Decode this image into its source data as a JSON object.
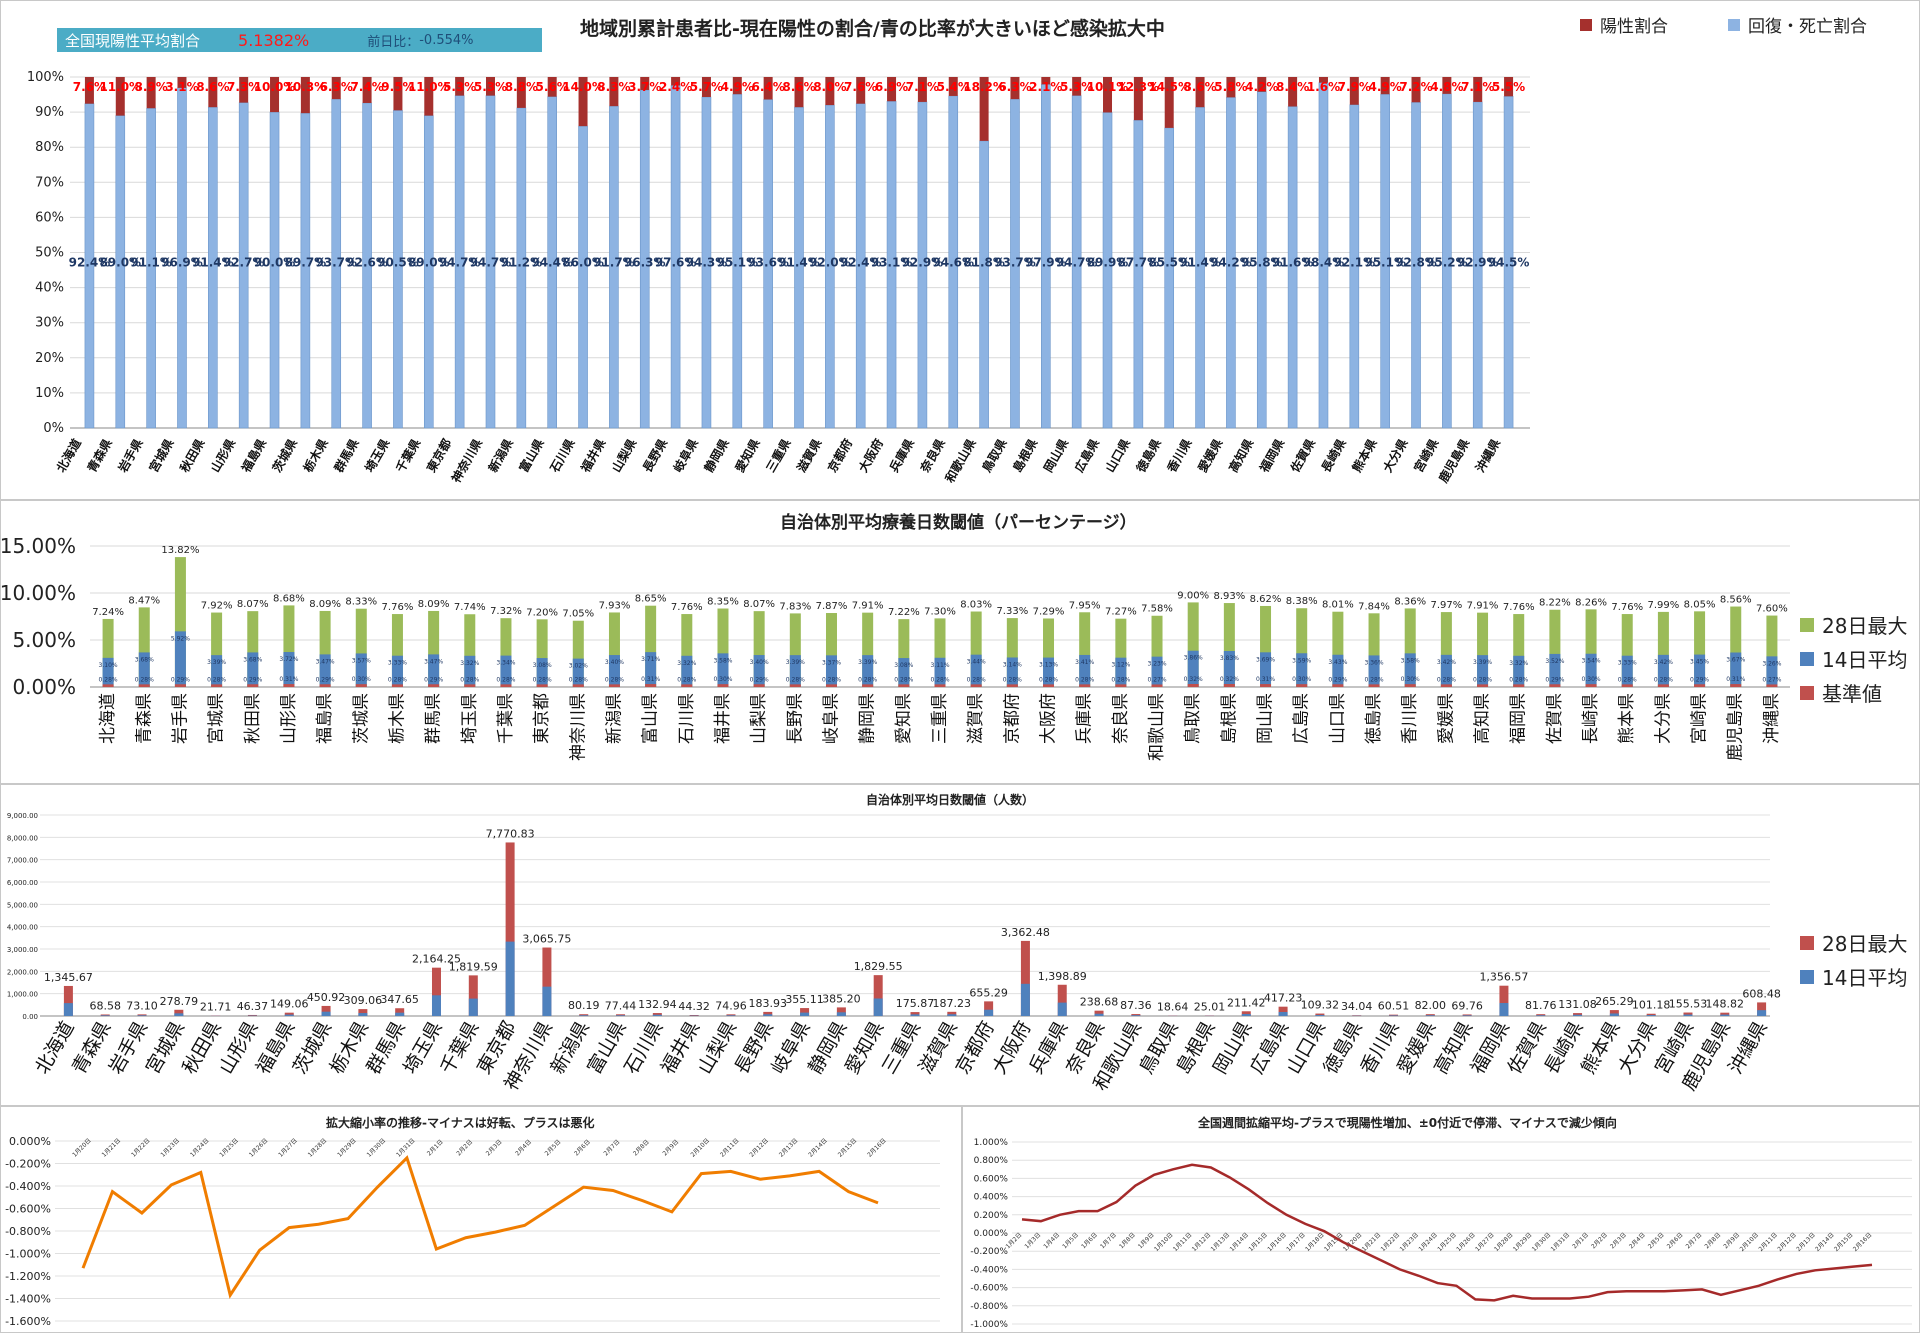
{
  "prefectures": [
    "北海道",
    "青森県",
    "岩手県",
    "宮城県",
    "秋田県",
    "山形県",
    "福島県",
    "茨城県",
    "栃木県",
    "群馬県",
    "埼玉県",
    "千葉県",
    "東京都",
    "神奈川県",
    "新潟県",
    "富山県",
    "石川県",
    "福井県",
    "山梨県",
    "長野県",
    "岐阜県",
    "静岡県",
    "愛知県",
    "三重県",
    "滋賀県",
    "京都府",
    "大阪府",
    "兵庫県",
    "奈良県",
    "和歌山県",
    "鳥取県",
    "島根県",
    "岡山県",
    "広島県",
    "山口県",
    "徳島県",
    "香川県",
    "愛媛県",
    "高知県",
    "福岡県",
    "佐賀県",
    "長崎県",
    "熊本県",
    "大分県",
    "宮崎県",
    "鹿児島県",
    "沖縄県"
  ],
  "summary": {
    "label": "全国現陽性平均割合",
    "value": "5.1382%",
    "change_label": "前日比",
    "change_sep": "：",
    "change_value": "-0.554%"
  },
  "colors": {
    "positive": "#a5302d",
    "recovered": "#8db3e2",
    "max28": "#9bbb59",
    "avg14": "#4f81bd",
    "base": "#c0504d",
    "max28_people": "#c0504d",
    "orange": "#f07d00",
    "darkred": "#a52a2a",
    "red_text": "#ff0000",
    "blue_text": "#1f3864"
  },
  "chart_data": [
    {
      "type": "bar",
      "stacked": true,
      "title": "地域別累計患者比-現在陽性の割合/青の比率が大きいほど感染拡大中",
      "categories_ref": "prefectures",
      "ylim": [
        0,
        100
      ],
      "yticks": [
        "0%",
        "10%",
        "20%",
        "30%",
        "40%",
        "50%",
        "60%",
        "70%",
        "80%",
        "90%",
        "100%"
      ],
      "series": [
        {
          "name": "陽性割合",
          "values": [
            7.6,
            11.0,
            8.9,
            3.1,
            8.6,
            7.3,
            10.0,
            10.3,
            6.3,
            7.4,
            9.5,
            11.0,
            5.3,
            5.3,
            8.8,
            5.6,
            14.0,
            8.3,
            3.7,
            2.4,
            5.7,
            4.9,
            6.4,
            8.6,
            8.0,
            7.6,
            6.9,
            7.1,
            5.4,
            18.2,
            6.3,
            2.1,
            5.3,
            10.1,
            12.3,
            14.5,
            8.6,
            5.8,
            4.2,
            8.4,
            1.6,
            7.9,
            4.9,
            7.2,
            4.8,
            7.1,
            5.5
          ]
        },
        {
          "name": "回復・死亡割合",
          "values": [
            92.4,
            89.0,
            91.1,
            96.9,
            91.4,
            92.7,
            90.0,
            89.7,
            93.7,
            92.6,
            90.5,
            89.0,
            94.7,
            94.7,
            91.2,
            94.4,
            86.0,
            91.7,
            96.3,
            97.6,
            94.3,
            95.1,
            93.6,
            91.4,
            92.0,
            92.4,
            93.1,
            92.9,
            94.6,
            81.8,
            93.7,
            97.9,
            94.7,
            89.9,
            87.7,
            85.5,
            91.4,
            94.2,
            95.8,
            91.6,
            98.4,
            92.1,
            95.1,
            92.8,
            95.2,
            92.9,
            94.5
          ]
        }
      ],
      "positive_labels": [
        "7.6%",
        "11.0%",
        "8.9%",
        "3.1%",
        "8.6%",
        "7.3%",
        "10.0%",
        "10.3%",
        "6.3%",
        "7.4%",
        "9.5%",
        "11.0%",
        "5.3%",
        "5.3%",
        "8.8%",
        "5.6%",
        "14.0%",
        "8.3%",
        "3.7%",
        "2.4%",
        "5.7%",
        "4.9%",
        "6.4%",
        "8.6%",
        "8.0%",
        "7.6%",
        "6.9%",
        "7.1%",
        "5.4%",
        "18.2%",
        "6.3%",
        "2.1%",
        "5.3%",
        "10.1%",
        "12.3%",
        "14.5%",
        "8.6%",
        "5.8%",
        "4.2%",
        "8.4%",
        "1.6%",
        "7.9%",
        "4.9%",
        "7.2%",
        "4.8%",
        "7.1%",
        "5.5%"
      ],
      "recovered_labels": [
        "92.4%",
        "89.0%",
        "91.1%",
        "96.9%",
        "91.4%",
        "92.7%",
        "90.0%",
        "89.7%",
        "93.7%",
        "92.6%",
        "90.5%",
        "89.0%",
        "94.7%",
        "94.7%",
        "91.2%",
        "94.4%",
        "86.0%",
        "91.7%",
        "96.3%",
        "97.6%",
        "94.3%",
        "95.1%",
        "93.6%",
        "91.4%",
        "92.0%",
        "92.4%",
        "93.1%",
        "92.9%",
        "94.6%",
        "81.8%",
        "93.7%",
        "97.9%",
        "94.7%",
        "89.9%",
        "87.7%",
        "85.5%",
        "91.4%",
        "94.2%",
        "95.8%",
        "91.6%",
        "98.4%",
        "92.1%",
        "95.1%",
        "92.8%",
        "95.2%",
        "92.9%",
        "94.5%"
      ],
      "legend_position": "top-right"
    },
    {
      "type": "bar",
      "title": "自治体別平均療養日数閾値（パーセンテージ）",
      "categories_ref": "prefectures",
      "ylim": [
        0,
        15
      ],
      "yticks": [
        "0.00%",
        "5.00%",
        "10.00%",
        "15.00%"
      ],
      "series": [
        {
          "name": "28日最大",
          "values": [
            7.24,
            8.47,
            13.82,
            7.92,
            8.07,
            8.68,
            8.09,
            8.33,
            7.76,
            8.09,
            7.74,
            7.32,
            7.2,
            7.05,
            7.93,
            8.65,
            7.76,
            8.35,
            8.07,
            7.83,
            7.87,
            7.91,
            7.22,
            7.3,
            8.03,
            7.33,
            7.29,
            7.95,
            7.27,
            7.58,
            9.0,
            8.93,
            8.62,
            8.38,
            8.01,
            7.84,
            8.36,
            7.97,
            7.91,
            7.76,
            8.22,
            8.26,
            7.76,
            7.99,
            8.05,
            8.56,
            7.6
          ]
        },
        {
          "name": "14日平均",
          "values": [
            3.1,
            3.68,
            5.92,
            3.39,
            3.68,
            3.72,
            3.47,
            3.57,
            3.33,
            3.47,
            3.32,
            3.34,
            3.08,
            3.02,
            3.4,
            3.71,
            3.32,
            3.58,
            3.4,
            3.39,
            3.37,
            3.39,
            3.08,
            3.11,
            3.44,
            3.14,
            3.13,
            3.41,
            3.12,
            3.23,
            3.86,
            3.83,
            3.69,
            3.59,
            3.43,
            3.36,
            3.58,
            3.42,
            3.39,
            3.32,
            3.52,
            3.54,
            3.33,
            3.42,
            3.45,
            3.67,
            3.26
          ]
        },
        {
          "name": "基準値",
          "values": [
            0.28,
            0.28,
            0.29,
            0.28,
            0.29,
            0.31,
            0.29,
            0.3,
            0.28,
            0.29,
            0.28,
            0.28,
            0.28,
            0.28,
            0.28,
            0.31,
            0.28,
            0.3,
            0.29,
            0.28,
            0.28,
            0.28,
            0.28,
            0.28,
            0.28,
            0.28,
            0.28,
            0.28,
            0.28,
            0.27,
            0.32,
            0.32,
            0.31,
            0.3,
            0.29,
            0.28,
            0.3,
            0.28,
            0.28,
            0.28,
            0.29,
            0.3,
            0.28,
            0.28,
            0.29,
            0.31,
            0.27
          ]
        }
      ],
      "max_labels": [
        "7.24%",
        "8.47%",
        "13.82%",
        "7.92%",
        "8.07%",
        "8.68%",
        "8.09%",
        "8.33%",
        "7.76%",
        "8.09%",
        "7.74%",
        "7.32%",
        "7.20%",
        "7.05%",
        "7.93%",
        "8.65%",
        "7.76%",
        "8.35%",
        "8.07%",
        "7.83%",
        "7.87%",
        "7.91%",
        "7.22%",
        "7.30%",
        "8.03%",
        "7.33%",
        "7.29%",
        "7.95%",
        "7.27%",
        "7.58%",
        "9.00%",
        "8.93%",
        "8.62%",
        "8.38%",
        "8.01%",
        "7.84%",
        "8.36%",
        "7.97%",
        "7.91%",
        "7.76%",
        "8.22%",
        "8.26%",
        "7.76%",
        "7.99%",
        "8.05%",
        "8.56%",
        "7.60%"
      ],
      "avg_labels": [
        "3.10%",
        "3.68%",
        "5.92%",
        "3.39%",
        "3.68%",
        "3.72%",
        "3.47%",
        "3.57%",
        "3.33%",
        "3.47%",
        "3.32%",
        "3.34%",
        "3.08%",
        "3.02%",
        "3.40%",
        "3.71%",
        "3.32%",
        "3.58%",
        "3.40%",
        "3.39%",
        "3.37%",
        "3.39%",
        "3.08%",
        "3.11%",
        "3.44%",
        "3.14%",
        "3.13%",
        "3.41%",
        "3.12%",
        "3.23%",
        "3.86%",
        "3.83%",
        "3.69%",
        "3.59%",
        "3.43%",
        "3.36%",
        "3.58%",
        "3.42%",
        "3.39%",
        "3.32%",
        "3.52%",
        "3.54%",
        "3.33%",
        "3.42%",
        "3.45%",
        "3.67%",
        "3.26%"
      ],
      "base_labels": [
        "0.28%",
        "0.28%",
        "0.29%",
        "0.28%",
        "0.29%",
        "0.31%",
        "0.29%",
        "0.30%",
        "0.28%",
        "0.29%",
        "0.28%",
        "0.28%",
        "0.28%",
        "0.28%",
        "0.28%",
        "0.31%",
        "0.28%",
        "0.30%",
        "0.29%",
        "0.28%",
        "0.28%",
        "0.28%",
        "0.28%",
        "0.28%",
        "0.28%",
        "0.28%",
        "0.28%",
        "0.28%",
        "0.28%",
        "0.27%",
        "0.32%",
        "0.32%",
        "0.31%",
        "0.30%",
        "0.29%",
        "0.28%",
        "0.30%",
        "0.28%",
        "0.28%",
        "0.28%",
        "0.29%",
        "0.30%",
        "0.28%",
        "0.28%",
        "0.29%",
        "0.31%",
        "0.27%"
      ],
      "legend_position": "right"
    },
    {
      "type": "bar",
      "title": "自治体別平均日数閾値（人数）",
      "categories_ref": "prefectures",
      "ylim": [
        0,
        9000
      ],
      "yticks": [
        "0.00",
        "1,000.00",
        "2,000.00",
        "3,000.00",
        "4,000.00",
        "5,000.00",
        "6,000.00",
        "7,000.00",
        "8,000.00",
        "9,000.00"
      ],
      "series": [
        {
          "name": "28日最大",
          "values": [
            1345.67,
            68.58,
            73.1,
            278.79,
            21.71,
            46.37,
            149.06,
            450.92,
            309.06,
            347.65,
            2164.25,
            1819.59,
            7770.83,
            3065.75,
            80.19,
            77.44,
            132.94,
            44.32,
            74.96,
            183.93,
            355.11,
            385.2,
            1829.55,
            175.87,
            187.23,
            655.29,
            3362.48,
            1398.89,
            238.68,
            87.36,
            18.64,
            25.01,
            211.42,
            417.23,
            109.32,
            34.04,
            60.51,
            82.0,
            69.76,
            1356.57,
            81.76,
            131.08,
            265.29,
            101.18,
            155.53,
            148.82,
            608.48
          ]
        },
        {
          "name": "14日平均",
          "values": [
            576.7,
            29.8,
            31.6,
            119.5,
            9.3,
            19.9,
            63.9,
            193.3,
            132.5,
            149.0,
            927.5,
            779.8,
            3330.4,
            1313.9,
            34.4,
            33.2,
            57.0,
            19.0,
            32.1,
            78.8,
            152.2,
            165.1,
            784.1,
            75.4,
            80.2,
            280.8,
            1441.1,
            599.5,
            102.3,
            37.4,
            8.0,
            10.7,
            90.6,
            178.8,
            46.9,
            14.6,
            25.9,
            35.1,
            29.9,
            581.4,
            35.0,
            56.2,
            113.7,
            43.4,
            66.7,
            63.8,
            260.8
          ]
        }
      ],
      "max_labels": [
        "1,345.67",
        "68.58",
        "73.10",
        "278.79",
        "21.71",
        "46.37",
        "149.06",
        "450.92",
        "309.06",
        "347.65",
        "2,164.25",
        "1,819.59",
        "7,770.83",
        "3,065.75",
        "80.19",
        "77.44",
        "132.94",
        "44.32",
        "74.96",
        "183.93",
        "355.11",
        "385.20",
        "1,829.55",
        "175.87",
        "187.23",
        "655.29",
        "3,362.48",
        "1,398.89",
        "238.68",
        "87.36",
        "18.64",
        "25.01",
        "211.42",
        "417.23",
        "109.32",
        "34.04",
        "60.51",
        "82.00",
        "69.76",
        "1,356.57",
        "81.76",
        "131.08",
        "265.29",
        "101.18",
        "155.53",
        "148.82",
        "608.48"
      ],
      "legend_position": "right"
    },
    {
      "type": "line",
      "title": "拡大縮小率の推移-マイナスは好転、プラスは悪化",
      "x": [
        "1月20日",
        "1月21日",
        "1月22日",
        "1月23日",
        "1月24日",
        "1月25日",
        "1月26日",
        "1月27日",
        "1月28日",
        "1月29日",
        "1月30日",
        "1月31日",
        "2月1日",
        "2月2日",
        "2月3日",
        "2月4日",
        "2月5日",
        "2月6日",
        "2月7日",
        "2月8日",
        "2月9日",
        "2月10日",
        "2月11日",
        "2月12日",
        "2月13日",
        "2月14日",
        "2月15日",
        "2月16日"
      ],
      "series": [
        {
          "name": "",
          "values": [
            -1.13,
            -0.45,
            -0.64,
            -0.39,
            -0.28,
            -1.37,
            -0.97,
            -0.77,
            -0.74,
            -0.69,
            -0.41,
            -0.15,
            -0.96,
            -0.86,
            -0.81,
            -0.75,
            -0.58,
            -0.41,
            -0.44,
            -0.53,
            -0.63,
            -0.29,
            -0.27,
            -0.34,
            -0.31,
            -0.27,
            -0.45,
            -0.55
          ]
        }
      ],
      "ylim": [
        -1.6,
        0
      ],
      "yticks": [
        "0.000%",
        "-0.200%",
        "-0.400%",
        "-0.600%",
        "-0.800%",
        "-1.000%",
        "-1.200%",
        "-1.400%",
        "-1.600%"
      ]
    },
    {
      "type": "line",
      "title": "全国週間拡縮平均-プラスで現陽性増加、±0付近で停滞、マイナスで減少傾向",
      "x": [
        "1月2日",
        "1月3日",
        "1月4日",
        "1月5日",
        "1月6日",
        "1月7日",
        "1月8日",
        "1月9日",
        "1月10日",
        "1月11日",
        "1月12日",
        "1月13日",
        "1月14日",
        "1月15日",
        "1月16日",
        "1月17日",
        "1月18日",
        "1月19日",
        "1月20日",
        "1月21日",
        "1月22日",
        "1月23日",
        "1月24日",
        "1月25日",
        "1月26日",
        "1月27日",
        "1月28日",
        "1月29日",
        "1月30日",
        "1月31日",
        "2月1日",
        "2月2日",
        "2月3日",
        "2月4日",
        "2月5日",
        "2月6日",
        "2月7日",
        "2月8日",
        "2月9日",
        "2月10日",
        "2月11日",
        "2月12日",
        "2月13日",
        "2月14日",
        "2月15日",
        "2月16日"
      ],
      "series": [
        {
          "name": "",
          "values": [
            0.15,
            0.13,
            0.2,
            0.24,
            0.24,
            0.34,
            0.52,
            0.64,
            0.7,
            0.75,
            0.72,
            0.61,
            0.48,
            0.33,
            0.2,
            0.1,
            0.02,
            -0.1,
            -0.2,
            -0.3,
            -0.4,
            -0.47,
            -0.55,
            -0.58,
            -0.73,
            -0.74,
            -0.69,
            -0.72,
            -0.72,
            -0.72,
            -0.7,
            -0.65,
            -0.64,
            -0.64,
            -0.64,
            -0.63,
            -0.62,
            -0.68,
            -0.63,
            -0.58,
            -0.51,
            -0.45,
            -0.41,
            -0.39,
            -0.37,
            -0.35
          ]
        }
      ],
      "ylim": [
        -1.0,
        1.0
      ],
      "yticks": [
        "1.000%",
        "0.800%",
        "0.600%",
        "0.400%",
        "0.200%",
        "0.000%",
        "-0.200%",
        "-0.400%",
        "-0.600%",
        "-0.800%",
        "-1.000%"
      ]
    }
  ]
}
